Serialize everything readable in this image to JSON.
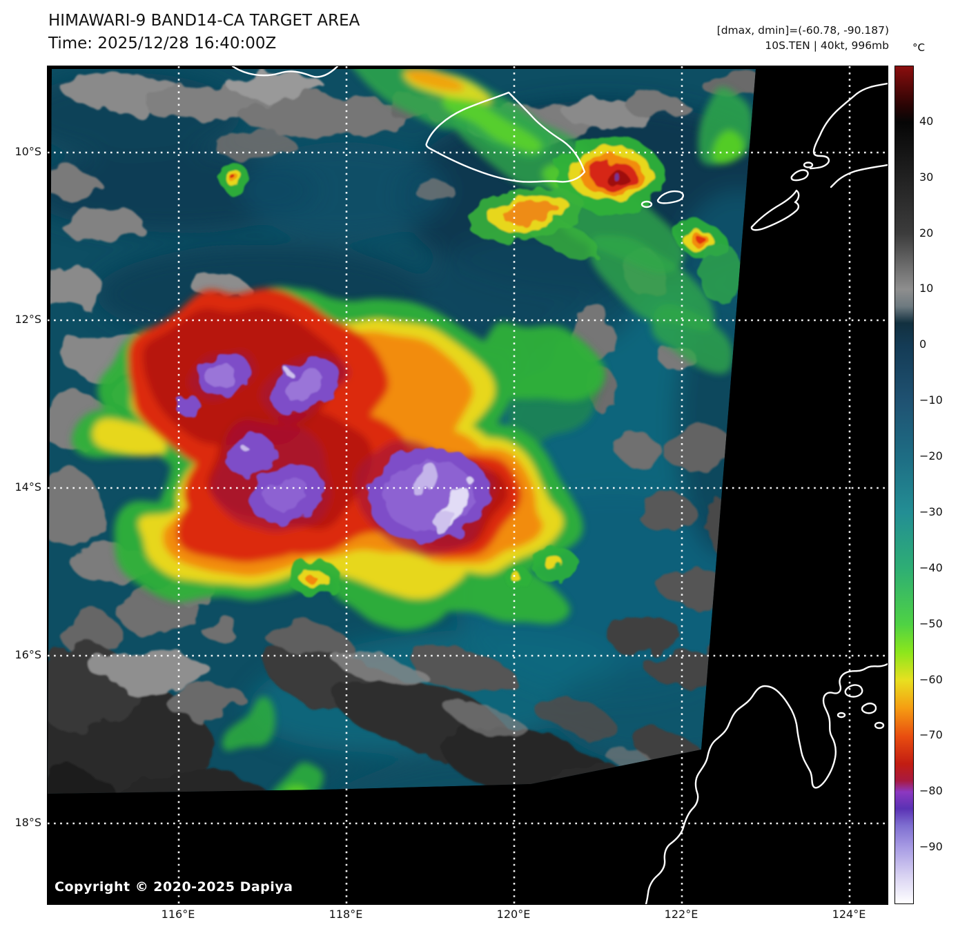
{
  "header": {
    "title": "HIMAWARI-9 BAND14-CA TARGET AREA",
    "time_line": "Time: 2025/12/28 16:40:00Z"
  },
  "annotation": {
    "line1": "[dmax, dmin]=(-60.78, -90.187)",
    "line2": "10S.TEN | 40kt, 996mb"
  },
  "colorbar": {
    "unit": "°C",
    "vmax": 50,
    "vmin": -100,
    "ticks": [
      40,
      30,
      20,
      10,
      0,
      -10,
      -20,
      -30,
      -40,
      -50,
      -60,
      -70,
      -80,
      -90
    ],
    "stops": [
      {
        "v": 50,
        "c": "#8b0e0e"
      },
      {
        "v": 43,
        "c": "#2a0404"
      },
      {
        "v": 40,
        "c": "#060606"
      },
      {
        "v": 20,
        "c": "#3c3c3c"
      },
      {
        "v": 10,
        "c": "#8e8e8e"
      },
      {
        "v": 7,
        "c": "#6e7a80"
      },
      {
        "v": 4,
        "c": "#12303f"
      },
      {
        "v": 0,
        "c": "#143b55"
      },
      {
        "v": -10,
        "c": "#1f5272"
      },
      {
        "v": -20,
        "c": "#1e6d84"
      },
      {
        "v": -30,
        "c": "#238e94"
      },
      {
        "v": -40,
        "c": "#2eae74"
      },
      {
        "v": -50,
        "c": "#4fd244"
      },
      {
        "v": -55,
        "c": "#8ce61c"
      },
      {
        "v": -60,
        "c": "#e8e020"
      },
      {
        "v": -65,
        "c": "#f59d12"
      },
      {
        "v": -70,
        "c": "#e94e10"
      },
      {
        "v": -75,
        "c": "#c21d12"
      },
      {
        "v": -78,
        "c": "#a81a40"
      },
      {
        "v": -80,
        "c": "#8c38c0"
      },
      {
        "v": -83,
        "c": "#5a32b4"
      },
      {
        "v": -86,
        "c": "#7e6ed0"
      },
      {
        "v": -90,
        "c": "#a89ce4"
      },
      {
        "v": -95,
        "c": "#d8d2f2"
      },
      {
        "v": -100,
        "c": "#ffffff"
      }
    ]
  },
  "map": {
    "lat_labels": [
      "10°S",
      "12°S",
      "14°S",
      "16°S",
      "18°S"
    ],
    "lon_labels": [
      "116°E",
      "118°E",
      "120°E",
      "122°E",
      "124°E"
    ],
    "copyright": "Copyright © 2020-2025 Dapiya"
  }
}
